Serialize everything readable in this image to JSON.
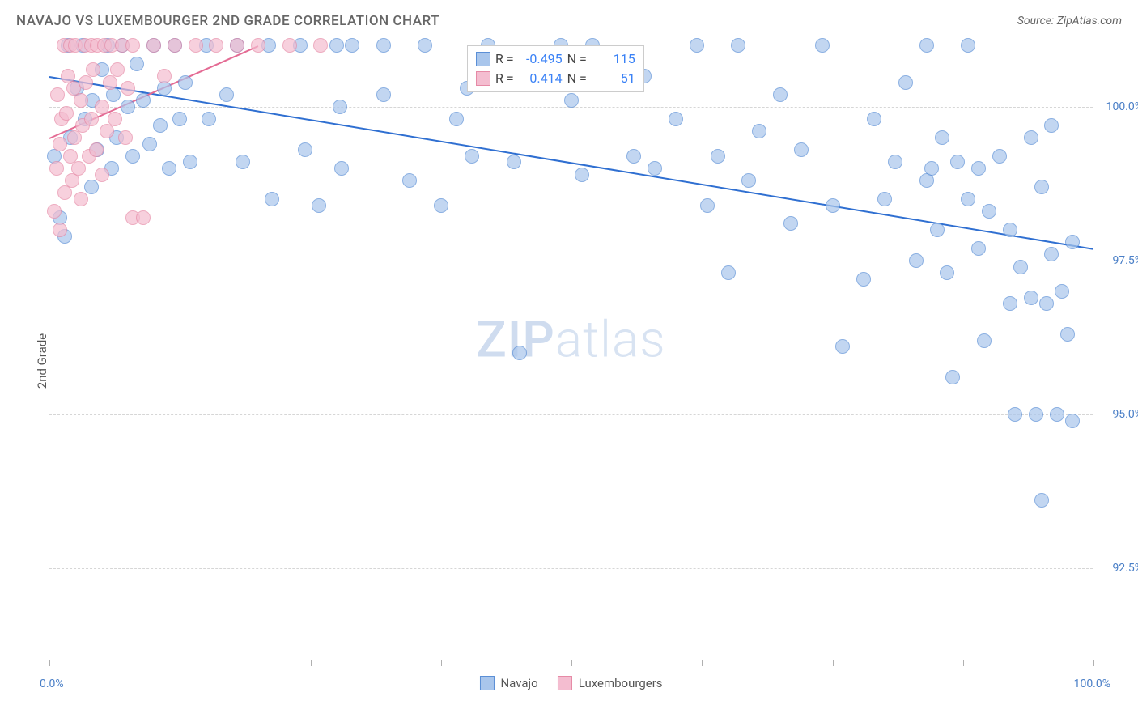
{
  "title": "NAVAJO VS LUXEMBOURGER 2ND GRADE CORRELATION CHART",
  "source_label": "Source: ZipAtlas.com",
  "y_axis_label": "2nd Grade",
  "watermark": {
    "zip": "ZIP",
    "atlas": "atlas"
  },
  "chart": {
    "type": "scatter",
    "background_color": "#ffffff",
    "grid_color": "#d6d6d6",
    "axis_color": "#b0b0b0",
    "tick_label_color": "#4a7fc7",
    "xlim": [
      0,
      100
    ],
    "ylim": [
      91,
      101
    ],
    "x_tick_label_left": "0.0%",
    "x_tick_label_right": "100.0%",
    "x_ticks": [
      0,
      12.5,
      25,
      37.5,
      50,
      62.5,
      75,
      87.5,
      100
    ],
    "y_gridlines": [
      {
        "value": 100.0,
        "label": "100.0%"
      },
      {
        "value": 97.5,
        "label": "97.5%"
      },
      {
        "value": 95.0,
        "label": "95.0%"
      },
      {
        "value": 92.5,
        "label": "92.5%"
      }
    ],
    "marker_radius": 9,
    "marker_stroke_width": 1.5,
    "marker_fill_opacity": 0.35,
    "series": [
      {
        "name": "Navajo",
        "label": "Navajo",
        "color_stroke": "#5b8fd6",
        "color_fill": "#a9c6ec",
        "R_label": "R =",
        "R_value": "-0.495",
        "N_label": "N =",
        "N_value": "115",
        "trend": {
          "x1": 0,
          "y1": 100.5,
          "x2": 100,
          "y2": 97.7,
          "color": "#2f6fd1",
          "width": 2
        },
        "points": [
          [
            1,
            98.2
          ],
          [
            1.5,
            97.9
          ],
          [
            1.8,
            101
          ],
          [
            0.5,
            99.2
          ],
          [
            2,
            99.5
          ],
          [
            2.6,
            100.3
          ],
          [
            3.2,
            101
          ],
          [
            3.4,
            99.8
          ],
          [
            4,
            98.7
          ],
          [
            4.1,
            100.1
          ],
          [
            4.6,
            99.3
          ],
          [
            5,
            100.6
          ],
          [
            5.6,
            101
          ],
          [
            6,
            99.0
          ],
          [
            6.1,
            100.2
          ],
          [
            6.4,
            99.5
          ],
          [
            7,
            101
          ],
          [
            7.5,
            100.0
          ],
          [
            8,
            99.2
          ],
          [
            8.4,
            100.7
          ],
          [
            9,
            100.1
          ],
          [
            9.6,
            99.4
          ],
          [
            10,
            101
          ],
          [
            10.6,
            99.7
          ],
          [
            11,
            100.3
          ],
          [
            11.5,
            99.0
          ],
          [
            12,
            101
          ],
          [
            12.5,
            99.8
          ],
          [
            13,
            100.4
          ],
          [
            13.5,
            99.1
          ],
          [
            15,
            101
          ],
          [
            15.3,
            99.8
          ],
          [
            17,
            100.2
          ],
          [
            18,
            101
          ],
          [
            18.5,
            99.1
          ],
          [
            21,
            101
          ],
          [
            21.3,
            98.5
          ],
          [
            24,
            101
          ],
          [
            24.5,
            99.3
          ],
          [
            25.8,
            98.4
          ],
          [
            27.5,
            101
          ],
          [
            27.8,
            100.0
          ],
          [
            28,
            99.0
          ],
          [
            29,
            101
          ],
          [
            32,
            100.2
          ],
          [
            32,
            101
          ],
          [
            34.5,
            98.8
          ],
          [
            36,
            101
          ],
          [
            37.5,
            98.4
          ],
          [
            39,
            99.8
          ],
          [
            40,
            100.3
          ],
          [
            40.5,
            99.2
          ],
          [
            42,
            101
          ],
          [
            44.5,
            99.1
          ],
          [
            44.8,
            100.6
          ],
          [
            45,
            96.0
          ],
          [
            49,
            101
          ],
          [
            50,
            100.1
          ],
          [
            51,
            98.9
          ],
          [
            52,
            101
          ],
          [
            56,
            99.2
          ],
          [
            57,
            100.5
          ],
          [
            58,
            99.0
          ],
          [
            60,
            99.8
          ],
          [
            62,
            101
          ],
          [
            63,
            98.4
          ],
          [
            64,
            99.2
          ],
          [
            65,
            97.3
          ],
          [
            66,
            101
          ],
          [
            67,
            98.8
          ],
          [
            68,
            99.6
          ],
          [
            70,
            100.2
          ],
          [
            71,
            98.1
          ],
          [
            72,
            99.3
          ],
          [
            74,
            101
          ],
          [
            75,
            98.4
          ],
          [
            76,
            96.1
          ],
          [
            78,
            97.2
          ],
          [
            79,
            99.8
          ],
          [
            80,
            98.5
          ],
          [
            81,
            99.1
          ],
          [
            82,
            100.4
          ],
          [
            83,
            97.5
          ],
          [
            84,
            98.8
          ],
          [
            84,
            101
          ],
          [
            84.5,
            99.0
          ],
          [
            85,
            98.0
          ],
          [
            85.5,
            99.5
          ],
          [
            86,
            97.3
          ],
          [
            86.5,
            95.6
          ],
          [
            87,
            99.1
          ],
          [
            88,
            101
          ],
          [
            88,
            98.5
          ],
          [
            89,
            97.7
          ],
          [
            89,
            99.0
          ],
          [
            89.5,
            96.2
          ],
          [
            90,
            98.3
          ],
          [
            91,
            99.2
          ],
          [
            92,
            96.8
          ],
          [
            92,
            98.0
          ],
          [
            92.5,
            95.0
          ],
          [
            93,
            97.4
          ],
          [
            94,
            99.5
          ],
          [
            94,
            96.9
          ],
          [
            94.5,
            95.0
          ],
          [
            95,
            98.7
          ],
          [
            95,
            93.6
          ],
          [
            95.5,
            96.8
          ],
          [
            96,
            97.6
          ],
          [
            96,
            99.7
          ],
          [
            96.5,
            95.0
          ],
          [
            97,
            97.0
          ],
          [
            97.5,
            96.3
          ],
          [
            98,
            94.9
          ],
          [
            98,
            97.8
          ]
        ]
      },
      {
        "name": "Luxembourgers",
        "label": "Luxembourgers",
        "color_stroke": "#e68aa6",
        "color_fill": "#f4bdd0",
        "R_label": "R =",
        "R_value": "0.414",
        "N_label": "N =",
        "N_value": "51",
        "trend": {
          "x1": 0,
          "y1": 99.5,
          "x2": 20,
          "y2": 101,
          "color": "#e46b94",
          "width": 2
        },
        "points": [
          [
            0.5,
            98.3
          ],
          [
            0.7,
            99.0
          ],
          [
            0.8,
            100.2
          ],
          [
            1.0,
            99.4
          ],
          [
            1.0,
            98.0
          ],
          [
            1.2,
            99.8
          ],
          [
            1.4,
            101
          ],
          [
            1.5,
            98.6
          ],
          [
            1.6,
            99.9
          ],
          [
            1.8,
            100.5
          ],
          [
            2.0,
            99.2
          ],
          [
            2.0,
            101
          ],
          [
            2.2,
            98.8
          ],
          [
            2.3,
            100.3
          ],
          [
            2.4,
            99.5
          ],
          [
            2.5,
            101
          ],
          [
            2.8,
            99.0
          ],
          [
            3.0,
            100.1
          ],
          [
            3.0,
            98.5
          ],
          [
            3.2,
            99.7
          ],
          [
            3.4,
            101
          ],
          [
            3.5,
            100.4
          ],
          [
            3.8,
            99.2
          ],
          [
            4.0,
            101
          ],
          [
            4.0,
            99.8
          ],
          [
            4.2,
            100.6
          ],
          [
            4.5,
            99.3
          ],
          [
            4.6,
            101
          ],
          [
            5.0,
            100.0
          ],
          [
            5.0,
            98.9
          ],
          [
            5.3,
            101
          ],
          [
            5.5,
            99.6
          ],
          [
            5.8,
            100.4
          ],
          [
            6.0,
            101
          ],
          [
            6.3,
            99.8
          ],
          [
            6.5,
            100.6
          ],
          [
            7.0,
            101
          ],
          [
            7.3,
            99.5
          ],
          [
            7.5,
            100.3
          ],
          [
            8.0,
            101
          ],
          [
            8.0,
            98.2
          ],
          [
            9.0,
            98.2
          ],
          [
            10.0,
            101
          ],
          [
            11.0,
            100.5
          ],
          [
            12.0,
            101
          ],
          [
            14.0,
            101
          ],
          [
            16.0,
            101
          ],
          [
            18.0,
            101
          ],
          [
            20.0,
            101
          ],
          [
            23.0,
            101
          ],
          [
            26.0,
            101
          ]
        ]
      }
    ],
    "legend_corr_position": {
      "left_pct": 40,
      "top_pct": 0
    },
    "legend_bottom": {
      "items": [
        {
          "label": "Navajo",
          "stroke": "#5b8fd6",
          "fill": "#a9c6ec"
        },
        {
          "label": "Luxembourgers",
          "stroke": "#e68aa6",
          "fill": "#f4bdd0"
        }
      ]
    }
  }
}
